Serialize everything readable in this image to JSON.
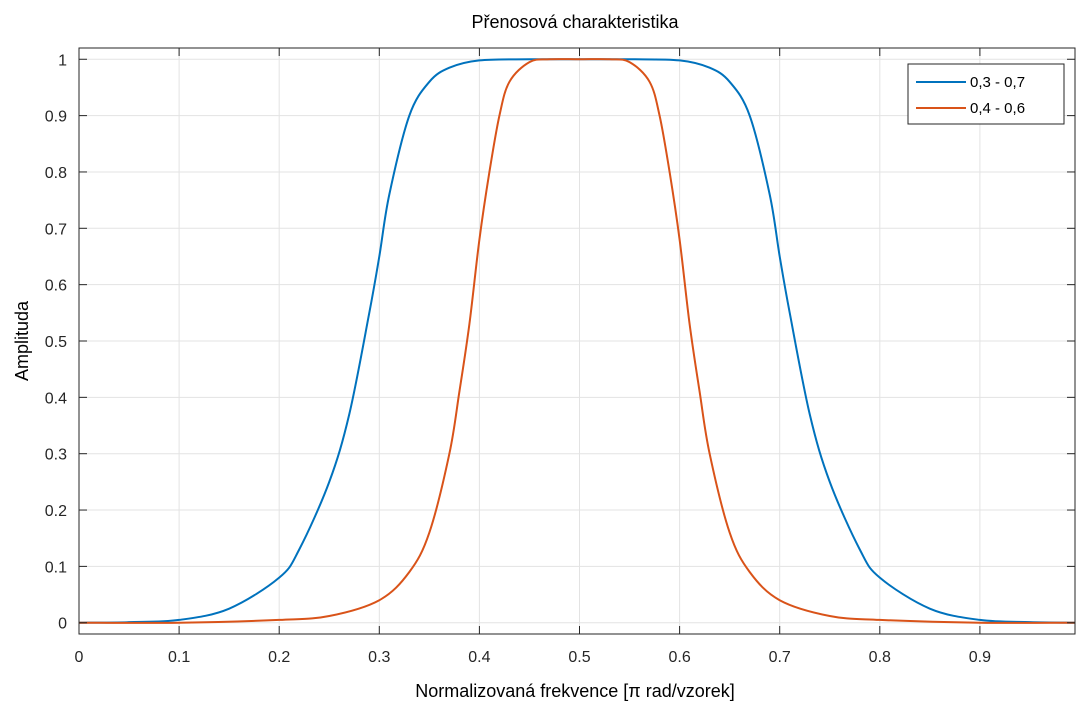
{
  "chart_data": {
    "type": "line",
    "title": "Přenosová charakteristika",
    "xlabel": "Normalizovaná frekvence [π rad/vzorek]",
    "ylabel": "Amplituda",
    "xlim": [
      0,
      0.995
    ],
    "ylim": [
      -0.02,
      1.02
    ],
    "xticks": [
      "0",
      "0.1",
      "0.2",
      "0.3",
      "0.4",
      "0.5",
      "0.6",
      "0.7",
      "0.8",
      "0.9"
    ],
    "yticks": [
      "0",
      "0.1",
      "0.2",
      "0.3",
      "0.4",
      "0.5",
      "0.6",
      "0.7",
      "0.8",
      "0.9",
      "1"
    ],
    "grid": true,
    "legend_position": "top-right",
    "series": [
      {
        "name": "0,3 - 0,7",
        "color": "#0072BD",
        "x": [
          0,
          0.05,
          0.1,
          0.15,
          0.2,
          0.22,
          0.25,
          0.27,
          0.29,
          0.3,
          0.31,
          0.33,
          0.35,
          0.37,
          0.4,
          0.45,
          0.5,
          0.55,
          0.6,
          0.63,
          0.65,
          0.67,
          0.69,
          0.7,
          0.71,
          0.73,
          0.75,
          0.78,
          0.8,
          0.85,
          0.9,
          0.95,
          0.995
        ],
        "y": [
          0.0,
          0.001,
          0.005,
          0.025,
          0.08,
          0.13,
          0.25,
          0.37,
          0.55,
          0.65,
          0.76,
          0.9,
          0.96,
          0.985,
          0.998,
          1.0,
          1.0,
          1.0,
          0.998,
          0.985,
          0.96,
          0.9,
          0.76,
          0.65,
          0.55,
          0.37,
          0.25,
          0.13,
          0.08,
          0.025,
          0.005,
          0.001,
          0.0
        ]
      },
      {
        "name": "0,4 - 0,6",
        "color": "#D95319",
        "x": [
          0,
          0.1,
          0.2,
          0.25,
          0.3,
          0.33,
          0.35,
          0.37,
          0.38,
          0.39,
          0.4,
          0.41,
          0.42,
          0.43,
          0.45,
          0.47,
          0.5,
          0.53,
          0.55,
          0.57,
          0.58,
          0.59,
          0.6,
          0.61,
          0.62,
          0.63,
          0.65,
          0.67,
          0.7,
          0.75,
          0.8,
          0.9,
          0.995
        ],
        "y": [
          0.0,
          0.0,
          0.005,
          0.012,
          0.04,
          0.09,
          0.16,
          0.3,
          0.41,
          0.53,
          0.68,
          0.8,
          0.9,
          0.96,
          0.995,
          1.0,
          1.0,
          1.0,
          0.995,
          0.96,
          0.9,
          0.8,
          0.68,
          0.53,
          0.41,
          0.3,
          0.16,
          0.09,
          0.04,
          0.012,
          0.005,
          0.0,
          0.0
        ]
      }
    ]
  }
}
